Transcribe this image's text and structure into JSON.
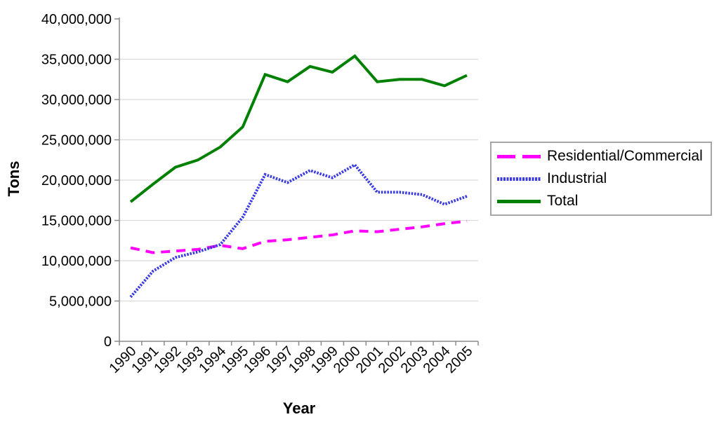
{
  "figure": {
    "background": "#FFFFFF",
    "axis_color": "#8c8c8c",
    "gridline_color": "#d9d9d9",
    "text_color": "#000000"
  },
  "chart_data": {
    "type": "line",
    "title": "",
    "xlabel": "Year",
    "ylabel": "Tons",
    "grid": "horizontal",
    "legend_position": "right",
    "ylim": [
      0,
      40000000
    ],
    "y_ticks": [
      0,
      5000000,
      10000000,
      15000000,
      20000000,
      25000000,
      30000000,
      35000000,
      40000000
    ],
    "y_tick_labels": [
      "0",
      "5,000,000",
      "10,000,000",
      "15,000,000",
      "20,000,000",
      "25,000,000",
      "30,000,000",
      "35,000,000",
      "40,000,000"
    ],
    "x": [
      1990,
      1991,
      1992,
      1993,
      1994,
      1995,
      1996,
      1997,
      1998,
      1999,
      2000,
      2001,
      2002,
      2003,
      2004,
      2005
    ],
    "series": [
      {
        "name": "Residential/Commercial",
        "color": "#ff00ff",
        "style": "dashed",
        "values": [
          11600000,
          11000000,
          11200000,
          11400000,
          11900000,
          11500000,
          12400000,
          12600000,
          12900000,
          13200000,
          13700000,
          13600000,
          13900000,
          14200000,
          14600000,
          14900000
        ]
      },
      {
        "name": "Industrial",
        "color": "#3a3ae0",
        "style": "dotted",
        "values": [
          5500000,
          8700000,
          10400000,
          11100000,
          12000000,
          15400000,
          20700000,
          19700000,
          21200000,
          20300000,
          21900000,
          18500000,
          18500000,
          18200000,
          17000000,
          18000000
        ]
      },
      {
        "name": "Total",
        "color": "#008000",
        "style": "solid",
        "values": [
          17300000,
          19500000,
          21600000,
          22500000,
          24100000,
          26600000,
          33100000,
          32200000,
          34100000,
          33400000,
          35400000,
          32200000,
          32500000,
          32500000,
          31700000,
          33000000
        ]
      }
    ]
  }
}
